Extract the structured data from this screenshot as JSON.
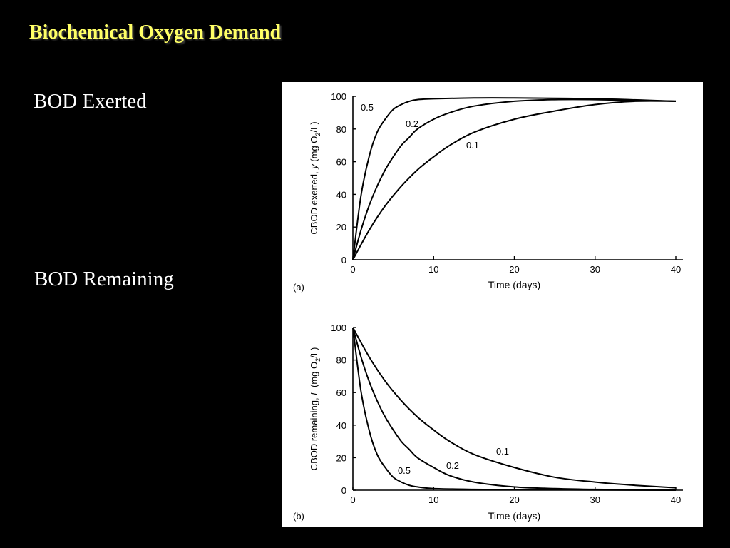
{
  "slide": {
    "title": "Biochemical Oxygen Demand",
    "bullets": [
      "BOD Exerted",
      "BOD Remaining"
    ]
  },
  "colors": {
    "background": "#000000",
    "title": "#ffff66",
    "text": "#ffffff",
    "figure_bg": "#ffffff",
    "ink": "#000000"
  },
  "chart_data": [
    {
      "type": "line",
      "panel_label": "(a)",
      "xlabel": "Time (days)",
      "ylabel_parts": {
        "main": "CBOD exerted, ",
        "var": "y",
        "unit_open": " (mg O",
        "sub": "2",
        "unit_close": "/L)"
      },
      "xlim": [
        0,
        40
      ],
      "ylim": [
        0,
        100
      ],
      "xticks": [
        0,
        10,
        20,
        30,
        40
      ],
      "yticks": [
        0,
        20,
        40,
        60,
        80,
        100
      ],
      "grid": false,
      "series": [
        {
          "name": "0.5",
          "points": [
            [
              0,
              0
            ],
            [
              1,
              39
            ],
            [
              2,
              63
            ],
            [
              3,
              78
            ],
            [
              4,
              86
            ],
            [
              5,
              92
            ],
            [
              6,
              95
            ],
            [
              7,
              97
            ],
            [
              8,
              98
            ],
            [
              10,
              98.5
            ],
            [
              15,
              99
            ],
            [
              20,
              99
            ],
            [
              30,
              98.5
            ],
            [
              40,
              97
            ]
          ]
        },
        {
          "name": "0.2",
          "points": [
            [
              0,
              0
            ],
            [
              1,
              18
            ],
            [
              2,
              33
            ],
            [
              3,
              45
            ],
            [
              4,
              55
            ],
            [
              5,
              63
            ],
            [
              6,
              70
            ],
            [
              7,
              75
            ],
            [
              8,
              80
            ],
            [
              10,
              86
            ],
            [
              12,
              90
            ],
            [
              15,
              94
            ],
            [
              20,
              97
            ],
            [
              25,
              98
            ],
            [
              30,
              98
            ],
            [
              40,
              97
            ]
          ]
        },
        {
          "name": "0.1",
          "points": [
            [
              0,
              0
            ],
            [
              2,
              18
            ],
            [
              4,
              33
            ],
            [
              6,
              45
            ],
            [
              8,
              55
            ],
            [
              10,
              63
            ],
            [
              12,
              70
            ],
            [
              15,
              78
            ],
            [
              20,
              86
            ],
            [
              25,
              91
            ],
            [
              30,
              95
            ],
            [
              35,
              97
            ],
            [
              40,
              97
            ]
          ]
        }
      ]
    },
    {
      "type": "line",
      "panel_label": "(b)",
      "xlabel": "Time (days)",
      "ylabel_parts": {
        "main": "CBOD remaining, ",
        "var": "L",
        "unit_open": " (mg O",
        "sub": "2",
        "unit_close": "/L)"
      },
      "xlim": [
        0,
        40
      ],
      "ylim": [
        0,
        100
      ],
      "xticks": [
        0,
        10,
        20,
        30,
        40
      ],
      "yticks": [
        0,
        20,
        40,
        60,
        80,
        100
      ],
      "grid": false,
      "series": [
        {
          "name": "0.5",
          "points": [
            [
              0,
              100
            ],
            [
              1,
              61
            ],
            [
              2,
              37
            ],
            [
              3,
              22
            ],
            [
              4,
              14
            ],
            [
              5,
              8
            ],
            [
              6,
              5
            ],
            [
              7,
              3
            ],
            [
              8,
              2
            ],
            [
              10,
              1
            ],
            [
              15,
              0.5
            ],
            [
              20,
              0.3
            ],
            [
              40,
              0
            ]
          ]
        },
        {
          "name": "0.2",
          "points": [
            [
              0,
              100
            ],
            [
              1,
              82
            ],
            [
              2,
              67
            ],
            [
              3,
              55
            ],
            [
              4,
              45
            ],
            [
              5,
              37
            ],
            [
              6,
              30
            ],
            [
              7,
              25
            ],
            [
              8,
              20
            ],
            [
              10,
              14
            ],
            [
              12,
              9
            ],
            [
              15,
              5
            ],
            [
              20,
              2
            ],
            [
              25,
              1
            ],
            [
              30,
              0.5
            ],
            [
              40,
              0
            ]
          ]
        },
        {
          "name": "0.1",
          "points": [
            [
              0,
              100
            ],
            [
              2,
              82
            ],
            [
              4,
              67
            ],
            [
              6,
              55
            ],
            [
              8,
              45
            ],
            [
              10,
              37
            ],
            [
              12,
              30
            ],
            [
              15,
              22
            ],
            [
              20,
              14
            ],
            [
              25,
              8
            ],
            [
              30,
              5
            ],
            [
              35,
              3
            ],
            [
              40,
              1.5
            ]
          ]
        }
      ]
    }
  ]
}
